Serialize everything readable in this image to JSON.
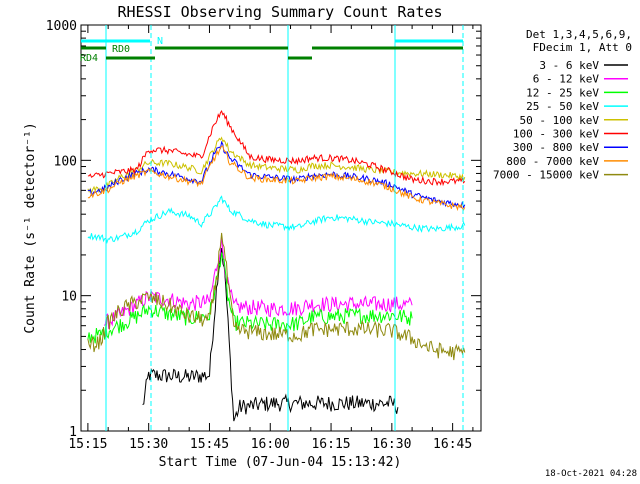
{
  "chart_data": {
    "type": "line",
    "title": "RHESSI Observing Summary Count Rates",
    "xlabel": "Start Time (07-Jun-04 15:13:42)",
    "ylabel": "Count Rate (s⁻¹ detector⁻¹)",
    "y_scale": "log",
    "ylim": [
      1,
      1000
    ],
    "xlim_minutes": [
      -1.7,
      97
    ],
    "x_ticks": [
      {
        "label": "15:15",
        "value": 0
      },
      {
        "label": "15:30",
        "value": 15
      },
      {
        "label": "15:45",
        "value": 30
      },
      {
        "label": "16:00",
        "value": 45
      },
      {
        "label": "16:15",
        "value": 60
      },
      {
        "label": "16:30",
        "value": 75
      },
      {
        "label": "16:45",
        "value": 90
      }
    ],
    "y_ticks": [
      {
        "label": "1",
        "value": 1
      },
      {
        "label": "10",
        "value": 10
      },
      {
        "label": "100",
        "value": 100
      },
      {
        "label": "1000",
        "value": 1000
      }
    ],
    "legend": {
      "placement": "right",
      "header": [
        "Det 1,3,4,5,6,9,",
        "FDecim 1, Att 0"
      ]
    },
    "series": [
      {
        "name": "3 - 6 keV",
        "color": "#000000",
        "points": [
          [
            13.5,
            1.5
          ],
          [
            15,
            2.6
          ],
          [
            25,
            2.5
          ],
          [
            30,
            2.6
          ],
          [
            32,
            14
          ],
          [
            33,
            23
          ],
          [
            34,
            12
          ],
          [
            36,
            1.2
          ],
          [
            37.5,
            1.5
          ],
          [
            45,
            1.6
          ],
          [
            50,
            1.6
          ],
          [
            65,
            1.6
          ],
          [
            75,
            1.6
          ],
          [
            76.5,
            1.5
          ]
        ]
      },
      {
        "name": "6 - 12 keV",
        "color": "#ff00ff",
        "points": [
          [
            4,
            6.2
          ],
          [
            8,
            7.2
          ],
          [
            12,
            8.6
          ],
          [
            15,
            9.8
          ],
          [
            20,
            9.4
          ],
          [
            25,
            8.7
          ],
          [
            30,
            9.0
          ],
          [
            32,
            18
          ],
          [
            33,
            25
          ],
          [
            34.5,
            12
          ],
          [
            36,
            8.3
          ],
          [
            45,
            8.0
          ],
          [
            52,
            8.1
          ],
          [
            55,
            8.7
          ],
          [
            60,
            8.6
          ],
          [
            65,
            8.7
          ],
          [
            70,
            8.6
          ],
          [
            75,
            8.7
          ],
          [
            80,
            8.5
          ]
        ]
      },
      {
        "name": "12 - 25 keV",
        "color": "#00ff00",
        "points": [
          [
            0,
            5.0
          ],
          [
            3,
            5.1
          ],
          [
            5,
            5.6
          ],
          [
            8,
            6.1
          ],
          [
            12,
            7.0
          ],
          [
            15,
            8.0
          ],
          [
            20,
            7.3
          ],
          [
            25,
            6.8
          ],
          [
            30,
            7.1
          ],
          [
            32,
            14
          ],
          [
            33,
            22
          ],
          [
            34.5,
            10
          ],
          [
            36,
            6.3
          ],
          [
            45,
            6.1
          ],
          [
            52,
            6.2
          ],
          [
            55,
            6.9
          ],
          [
            65,
            7.1
          ],
          [
            75,
            7.2
          ],
          [
            80,
            6.8
          ]
        ]
      },
      {
        "name": "25 - 50 keV",
        "color": "#00ffff",
        "points": [
          [
            0,
            28
          ],
          [
            3,
            27
          ],
          [
            5,
            26
          ],
          [
            8,
            27
          ],
          [
            12,
            30
          ],
          [
            15,
            36
          ],
          [
            20,
            42
          ],
          [
            25,
            39
          ],
          [
            28,
            34
          ],
          [
            31,
            43
          ],
          [
            33,
            53
          ],
          [
            35,
            43
          ],
          [
            40,
            36
          ],
          [
            45,
            33
          ],
          [
            52,
            32
          ],
          [
            55,
            35
          ],
          [
            60,
            38
          ],
          [
            65,
            37
          ],
          [
            70,
            35
          ],
          [
            75,
            34
          ],
          [
            80,
            32
          ],
          [
            85,
            31
          ],
          [
            90,
            32
          ],
          [
            93,
            33
          ]
        ]
      },
      {
        "name": "50 - 100 keV",
        "color": "#ccc100",
        "points": [
          [
            0,
            60
          ],
          [
            3,
            62
          ],
          [
            5,
            65
          ],
          [
            8,
            75
          ],
          [
            12,
            85
          ],
          [
            15,
            96
          ],
          [
            20,
            95
          ],
          [
            25,
            88
          ],
          [
            28,
            83
          ],
          [
            31,
            120
          ],
          [
            33,
            150
          ],
          [
            35,
            118
          ],
          [
            40,
            92
          ],
          [
            45,
            88
          ],
          [
            52,
            85
          ],
          [
            55,
            91
          ],
          [
            60,
            92
          ],
          [
            65,
            89
          ],
          [
            70,
            85
          ],
          [
            75,
            82
          ],
          [
            80,
            80
          ],
          [
            85,
            79
          ],
          [
            90,
            77
          ],
          [
            93,
            75
          ]
        ]
      },
      {
        "name": "100 - 300 keV",
        "color": "#ff0000",
        "points": [
          [
            0,
            75
          ],
          [
            3,
            78
          ],
          [
            5,
            80
          ],
          [
            8,
            82
          ],
          [
            12,
            85
          ],
          [
            15,
            120
          ],
          [
            20,
            118
          ],
          [
            25,
            110
          ],
          [
            28,
            106
          ],
          [
            31,
            180
          ],
          [
            33,
            230
          ],
          [
            35,
            180
          ],
          [
            40,
            106
          ],
          [
            45,
            101
          ],
          [
            52,
            99
          ],
          [
            55,
            104
          ],
          [
            60,
            104
          ],
          [
            65,
            100
          ],
          [
            70,
            92
          ],
          [
            75,
            82
          ],
          [
            80,
            72
          ],
          [
            85,
            70
          ],
          [
            90,
            70
          ],
          [
            93,
            70
          ]
        ]
      },
      {
        "name": "300 - 800 keV",
        "color": "#0000ff",
        "points": [
          [
            0,
            57
          ],
          [
            3,
            60
          ],
          [
            5,
            63
          ],
          [
            8,
            72
          ],
          [
            12,
            80
          ],
          [
            15,
            86
          ],
          [
            20,
            80
          ],
          [
            25,
            73
          ],
          [
            28,
            70
          ],
          [
            31,
            108
          ],
          [
            33,
            130
          ],
          [
            35,
            104
          ],
          [
            40,
            78
          ],
          [
            45,
            75
          ],
          [
            52,
            72
          ],
          [
            55,
            77
          ],
          [
            60,
            79
          ],
          [
            65,
            76
          ],
          [
            70,
            72
          ],
          [
            75,
            66
          ],
          [
            80,
            56
          ],
          [
            85,
            51
          ],
          [
            90,
            48
          ],
          [
            93,
            47
          ]
        ]
      },
      {
        "name": "800 - 7000 keV",
        "color": "#ff8c00",
        "points": [
          [
            0,
            55
          ],
          [
            3,
            58
          ],
          [
            5,
            61
          ],
          [
            8,
            69
          ],
          [
            12,
            77
          ],
          [
            15,
            83
          ],
          [
            20,
            76
          ],
          [
            25,
            70
          ],
          [
            28,
            67
          ],
          [
            31,
            102
          ],
          [
            33,
            125
          ],
          [
            35,
            98
          ],
          [
            40,
            74
          ],
          [
            45,
            72
          ],
          [
            52,
            70
          ],
          [
            55,
            74
          ],
          [
            60,
            76
          ],
          [
            65,
            73
          ],
          [
            70,
            69
          ],
          [
            75,
            62
          ],
          [
            80,
            53
          ],
          [
            85,
            49
          ],
          [
            90,
            46
          ],
          [
            93,
            45
          ]
        ]
      },
      {
        "name": "7000 - 15000 keV",
        "color": "#8f8a10",
        "points": [
          [
            0,
            4.2
          ],
          [
            3,
            4.6
          ],
          [
            5,
            6.3
          ],
          [
            8,
            7.8
          ],
          [
            12,
            9.0
          ],
          [
            15,
            9.8
          ],
          [
            20,
            8.5
          ],
          [
            25,
            7.0
          ],
          [
            30,
            6.5
          ],
          [
            32,
            15
          ],
          [
            33,
            31
          ],
          [
            34.5,
            13
          ],
          [
            36,
            5.6
          ],
          [
            45,
            5.2
          ],
          [
            52,
            5.1
          ],
          [
            55,
            5.6
          ],
          [
            65,
            5.7
          ],
          [
            75,
            5.5
          ],
          [
            80,
            4.8
          ],
          [
            85,
            4.0
          ],
          [
            90,
            3.8
          ],
          [
            93,
            3.8
          ]
        ]
      }
    ]
  },
  "page": {
    "title": "RHESSI Observing Summary Count Rates",
    "annotations": {
      "n_label": "N",
      "rd0_label": "RD0",
      "rd4_label": "RD4"
    },
    "timestamp": "18-Oct-2021 04:28"
  }
}
